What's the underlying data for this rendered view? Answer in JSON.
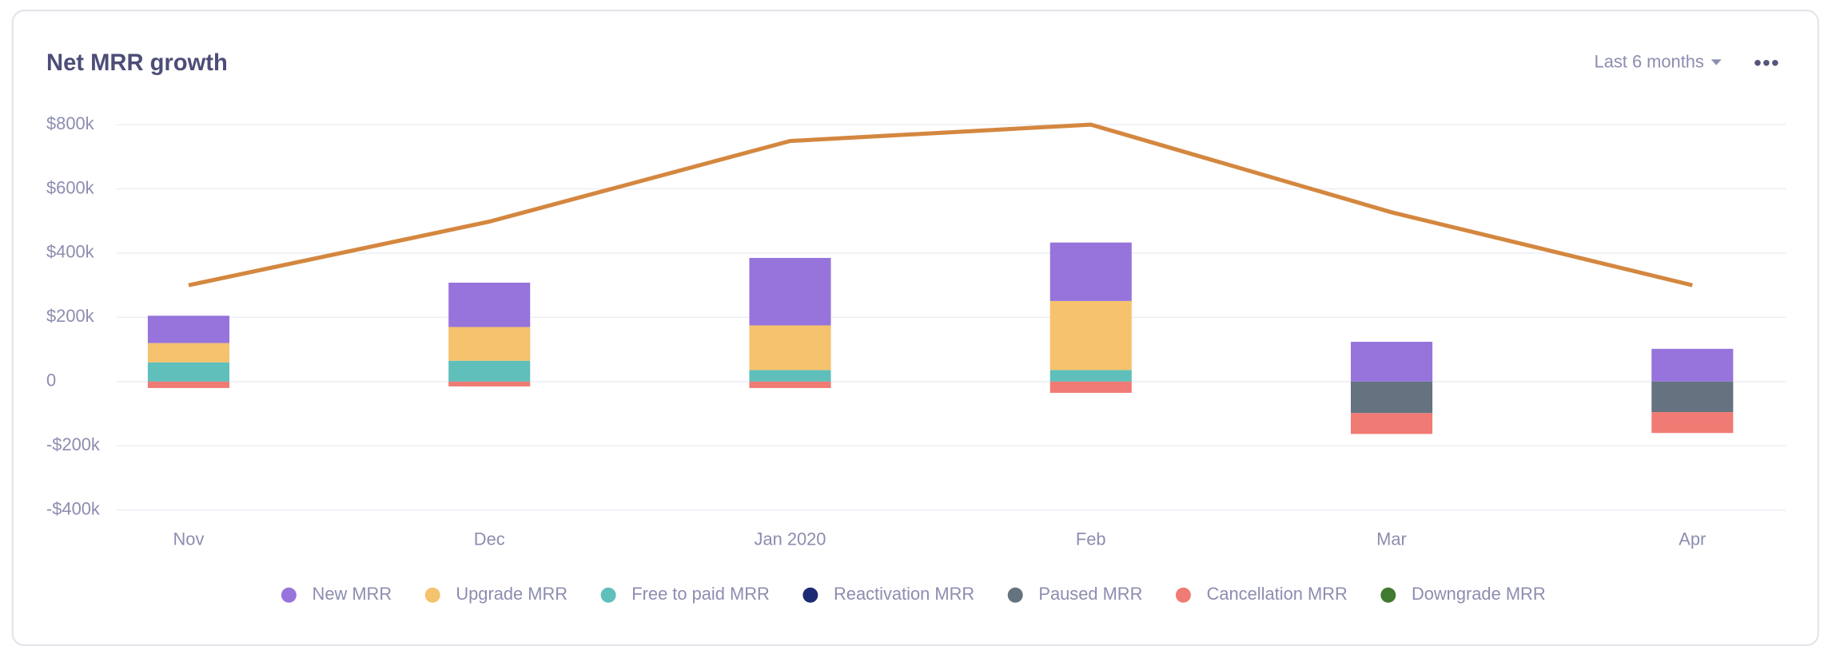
{
  "header": {
    "range": "Last 6 months"
  },
  "chart_data": {
    "type": "bar",
    "title": "Net MRR growth",
    "categories": [
      "Nov",
      "Dec",
      "Jan 2020",
      "Feb",
      "Mar",
      "Apr"
    ],
    "stacked": true,
    "series": [
      {
        "name": "New MRR",
        "color": "#9674db",
        "values": [
          85000,
          138000,
          210000,
          182000,
          124000,
          102000
        ]
      },
      {
        "name": "Upgrade MRR",
        "color": "#f5c26d",
        "values": [
          60000,
          105000,
          139000,
          215000,
          0,
          0
        ]
      },
      {
        "name": "Free to paid MRR",
        "color": "#5fbfba",
        "values": [
          60000,
          65000,
          36000,
          36000,
          0,
          0
        ]
      },
      {
        "name": "Reactivation MRR",
        "color": "#1f2a74",
        "values": [
          0,
          0,
          0,
          0,
          0,
          0
        ]
      },
      {
        "name": "Paused MRR",
        "color": "#65727f",
        "values": [
          0,
          0,
          0,
          0,
          -98000,
          -95000
        ]
      },
      {
        "name": "Cancellation MRR",
        "color": "#f07a74",
        "values": [
          -20000,
          -15000,
          -20000,
          -35000,
          -65000,
          -65000
        ]
      },
      {
        "name": "Downgrade MRR",
        "color": "#407a2f",
        "values": [
          0,
          0,
          0,
          0,
          0,
          0
        ]
      }
    ],
    "line": {
      "type": "line",
      "color": "#d4873f",
      "values": [
        300000,
        498000,
        749000,
        800000,
        527000,
        300000
      ]
    },
    "ylim": [
      -400000,
      800000
    ],
    "yticks": [
      {
        "value": -400000,
        "label": "-$400k"
      },
      {
        "value": -200000,
        "label": "-$200k"
      },
      0,
      {
        "value": 200000,
        "label": "$200k"
      },
      {
        "value": 400000,
        "label": "$400k"
      },
      {
        "value": 600000,
        "label": "$600k"
      },
      {
        "value": 800000,
        "label": "$800k"
      }
    ],
    "grid": true
  }
}
